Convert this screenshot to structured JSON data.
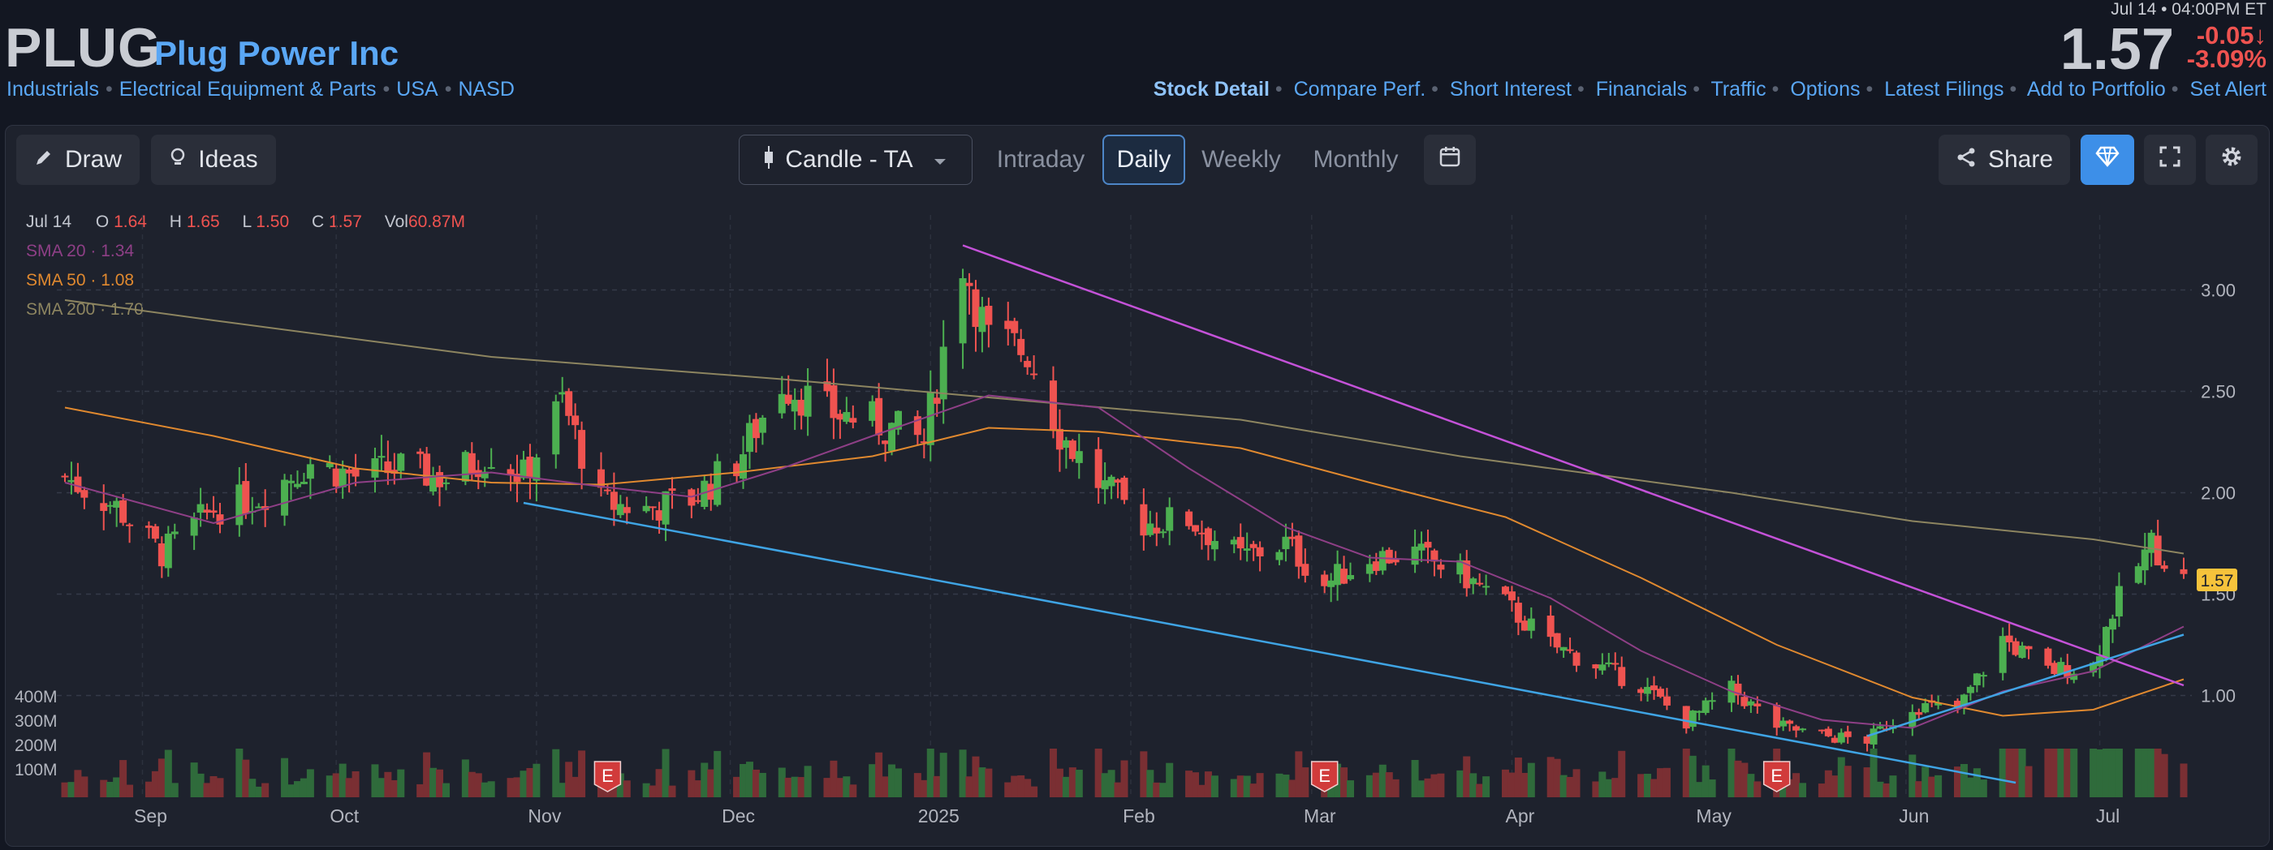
{
  "header": {
    "ticker": "PLUG",
    "company": "Plug Power Inc",
    "sector": "Industrials",
    "industry": "Electrical Equipment & Parts",
    "country": "USA",
    "exchange": "NASD",
    "timestamp": "Jul 14 • 04:00PM ET",
    "price": "1.57",
    "change": "-0.05",
    "change_arrow": "↓",
    "change_pct": "-3.09%",
    "links": [
      "Stock Detail",
      "Compare Perf.",
      "Short Interest",
      "Financials",
      "Traffic",
      "Options",
      "Latest Filings",
      "Add to Portfolio",
      "Set Alert"
    ]
  },
  "toolbar": {
    "draw": "Draw",
    "ideas": "Ideas",
    "chart_type": "Candle - TA",
    "periods": [
      "Intraday",
      "Daily",
      "Weekly",
      "Monthly"
    ],
    "active_period": "Daily",
    "share": "Share"
  },
  "legend": {
    "date": "Jul 14",
    "o_label": "O",
    "o": "1.64",
    "h_label": "H",
    "h": "1.65",
    "l_label": "L",
    "l": "1.50",
    "c_label": "C",
    "c": "1.57",
    "vol_label": "Vol",
    "vol": "60.87M",
    "sma20": "SMA 20",
    "sma20_val": "1.34",
    "sma50": "SMA 50",
    "sma50_val": "1.08",
    "sma200": "SMA 200",
    "sma200_val": "1.70"
  },
  "colors": {
    "up": "#4caf50",
    "down": "#ef5350",
    "sma20": "#8e3f86",
    "sma50": "#e0892f",
    "sma200": "#8d8560",
    "trend_down": "#c452d8",
    "trend_support": "#3fa4e4",
    "earnings": "#d13b3b",
    "last_price": "#f6c33b"
  },
  "chart_data": {
    "type": "candlestick",
    "title": "",
    "x_labels": [
      "Sep",
      "Oct",
      "Nov",
      "Dec",
      "2025",
      "Feb",
      "Mar",
      "Apr",
      "May",
      "Jun",
      "Jul"
    ],
    "y_ticks": [
      "3.00",
      "2.50",
      "2.00",
      "1.50",
      "1.00"
    ],
    "volume_ticks": [
      "400M",
      "300M",
      "200M",
      "100M"
    ],
    "ylim": [
      0.55,
      3.35
    ],
    "last_price_label": "1.57",
    "earnings_marker": "E",
    "earnings_dates": [
      "Nov 12",
      "Mar 3",
      "May 12"
    ],
    "price_points": [
      [
        "Aug 20",
        2.08
      ],
      [
        "Aug 28",
        1.93
      ],
      [
        "Sep 4",
        1.7
      ],
      [
        "Sep 12",
        1.92
      ],
      [
        "Sep 19",
        1.98
      ],
      [
        "Sep 27",
        2.15
      ],
      [
        "Oct 4",
        2.08
      ],
      [
        "Oct 11",
        2.12
      ],
      [
        "Oct 18",
        2.07
      ],
      [
        "Oct 25",
        2.2
      ],
      [
        "Oct 30",
        2.08
      ],
      [
        "Nov 5",
        2.45
      ],
      [
        "Nov 11",
        1.95
      ],
      [
        "Nov 18",
        1.92
      ],
      [
        "Nov 25",
        1.97
      ],
      [
        "Dec 2",
        2.15
      ],
      [
        "Dec 9",
        2.55
      ],
      [
        "Dec 16",
        2.4
      ],
      [
        "Dec 23",
        2.35
      ],
      [
        "Dec 31",
        2.25
      ],
      [
        "Jan 6",
        3.15
      ],
      [
        "Jan 10",
        2.75
      ],
      [
        "Jan 16",
        2.7
      ],
      [
        "Jan 21",
        2.3
      ],
      [
        "Jan 27",
        2.05
      ],
      [
        "Feb 3",
        1.85
      ],
      [
        "Feb 10",
        1.87
      ],
      [
        "Feb 18",
        1.68
      ],
      [
        "Feb 25",
        1.75
      ],
      [
        "Mar 3",
        1.55
      ],
      [
        "Mar 10",
        1.68
      ],
      [
        "Mar 17",
        1.7
      ],
      [
        "Mar 24",
        1.6
      ],
      [
        "Mar 31",
        1.45
      ],
      [
        "Apr 7",
        1.25
      ],
      [
        "Apr 14",
        1.15
      ],
      [
        "Apr 21",
        1.05
      ],
      [
        "Apr 28",
        0.87
      ],
      [
        "May 5",
        1.03
      ],
      [
        "May 12",
        0.85
      ],
      [
        "May 19",
        0.8
      ],
      [
        "May 26",
        0.78
      ],
      [
        "Jun 2",
        0.95
      ],
      [
        "Jun 9",
        0.93
      ],
      [
        "Jun 16",
        1.28
      ],
      [
        "Jun 23",
        1.12
      ],
      [
        "Jun 30",
        1.15
      ],
      [
        "Jul 3",
        1.42
      ],
      [
        "Jul 9",
        1.75
      ],
      [
        "Jul 14",
        1.57
      ]
    ],
    "sma20": [
      [
        "Aug 20",
        2.05
      ],
      [
        "Sep 12",
        1.85
      ],
      [
        "Oct 4",
        2.05
      ],
      [
        "Oct 25",
        2.1
      ],
      [
        "Nov 11",
        2.03
      ],
      [
        "Nov 25",
        1.98
      ],
      [
        "Dec 9",
        2.12
      ],
      [
        "Dec 23",
        2.28
      ],
      [
        "Jan 10",
        2.48
      ],
      [
        "Jan 27",
        2.42
      ],
      [
        "Feb 10",
        2.12
      ],
      [
        "Feb 25",
        1.83
      ],
      [
        "Mar 10",
        1.68
      ],
      [
        "Mar 24",
        1.66
      ],
      [
        "Apr 7",
        1.48
      ],
      [
        "Apr 21",
        1.22
      ],
      [
        "May 5",
        1.02
      ],
      [
        "May 19",
        0.88
      ],
      [
        "Jun 2",
        0.84
      ],
      [
        "Jun 16",
        1.02
      ],
      [
        "Jun 30",
        1.12
      ],
      [
        "Jul 14",
        1.34
      ]
    ],
    "sma50": [
      [
        "Aug 20",
        2.42
      ],
      [
        "Sep 12",
        2.28
      ],
      [
        "Oct 4",
        2.12
      ],
      [
        "Oct 25",
        2.05
      ],
      [
        "Nov 11",
        2.04
      ],
      [
        "Dec 2",
        2.1
      ],
      [
        "Dec 23",
        2.18
      ],
      [
        "Jan 10",
        2.32
      ],
      [
        "Jan 27",
        2.3
      ],
      [
        "Feb 18",
        2.22
      ],
      [
        "Mar 10",
        2.05
      ],
      [
        "Mar 31",
        1.88
      ],
      [
        "Apr 21",
        1.58
      ],
      [
        "May 12",
        1.25
      ],
      [
        "Jun 2",
        0.99
      ],
      [
        "Jun 16",
        0.9
      ],
      [
        "Jun 30",
        0.93
      ],
      [
        "Jul 14",
        1.08
      ]
    ],
    "sma200": [
      [
        "Aug 20",
        2.95
      ],
      [
        "Sep 12",
        2.85
      ],
      [
        "Oct 25",
        2.67
      ],
      [
        "Dec 9",
        2.56
      ],
      [
        "Jan 10",
        2.47
      ],
      [
        "Feb 18",
        2.36
      ],
      [
        "Mar 24",
        2.18
      ],
      [
        "May 5",
        2.0
      ],
      [
        "Jun 2",
        1.86
      ],
      [
        "Jun 30",
        1.77
      ],
      [
        "Jul 14",
        1.7
      ]
    ],
    "trendlines": [
      {
        "name": "downtrend",
        "from": [
          "Jan 6",
          3.22
        ],
        "to": [
          "Jul 14",
          1.05
        ]
      },
      {
        "name": "support",
        "from": [
          "Oct 30",
          1.95
        ],
        "to": [
          "Jun 18",
          0.57
        ]
      },
      {
        "name": "uptrend",
        "from": [
          "May 26",
          0.8
        ],
        "to": [
          "Jul 14",
          1.3
        ]
      }
    ]
  }
}
